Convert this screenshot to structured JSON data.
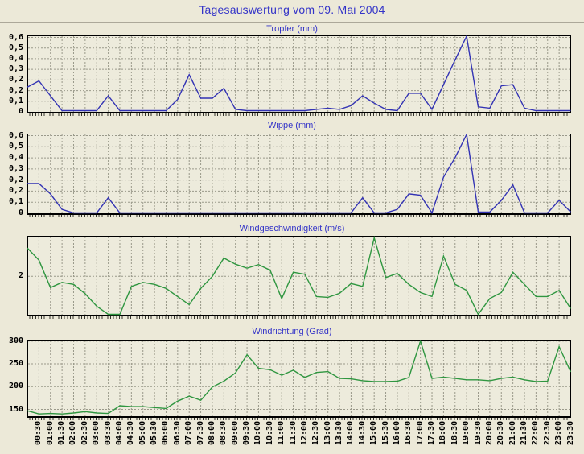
{
  "page": {
    "title": "Tagesauswertung vom 09. Mai 2004",
    "background": "#ece9d8",
    "plot_background": "#edebdc",
    "title_color": "#3434c8",
    "grid_color": "#9a998a",
    "axis_color": "#000000"
  },
  "x_axis": {
    "tick_labels": [
      "00:30",
      "01:00",
      "01:30",
      "02:00",
      "02:30",
      "03:00",
      "03:30",
      "04:00",
      "04:30",
      "05:00",
      "05:30",
      "06:00",
      "06:30",
      "07:00",
      "07:30",
      "08:00",
      "08:30",
      "09:00",
      "09:30",
      "10:00",
      "10:30",
      "11:00",
      "11:30",
      "12:00",
      "12:30",
      "13:00",
      "13:30",
      "14:00",
      "14:30",
      "15:00",
      "15:30",
      "16:00",
      "16:30",
      "17:00",
      "17:30",
      "18:00",
      "18:30",
      "19:00",
      "19:30",
      "20:00",
      "20:30",
      "21:00",
      "21:30",
      "22:00",
      "22:30",
      "23:00",
      "23:30"
    ]
  },
  "chart_data": [
    {
      "type": "line",
      "title": "Tropfer (mm)",
      "line_color": "#3333b4",
      "y_axis": {
        "scale": "rows",
        "labels": [
          "0,6",
          "0,5",
          "0,4",
          "0,3",
          "0,2",
          "0,2",
          "0,1",
          "0"
        ],
        "top_value": 0.6,
        "bottom_value": 0
      },
      "x_step_minutes": 30,
      "values": [
        0.2,
        0.25,
        0.13,
        0.01,
        0.01,
        0.01,
        0.01,
        0.13,
        0.01,
        0.01,
        0.01,
        0.01,
        0.01,
        0.1,
        0.3,
        0.11,
        0.11,
        0.19,
        0.02,
        0.01,
        0.01,
        0.01,
        0.01,
        0.01,
        0.01,
        0.02,
        0.03,
        0.02,
        0.05,
        0.13,
        0.07,
        0.02,
        0.01,
        0.15,
        0.15,
        0.02,
        0.22,
        0.42,
        0.62,
        0.04,
        0.03,
        0.21,
        0.22,
        0.03,
        0.01,
        0.01,
        0.01,
        0.01
      ]
    },
    {
      "type": "line",
      "title": "Wippe (mm)",
      "line_color": "#3333b4",
      "y_axis": {
        "scale": "rows",
        "labels": [
          "0,6",
          "0,5",
          "0,4",
          "0,3",
          "0,2",
          "0,2",
          "0,1",
          "0"
        ],
        "top_value": 0.6,
        "bottom_value": 0
      },
      "x_step_minutes": 30,
      "values": [
        0.23,
        0.23,
        0.15,
        0.03,
        0.0,
        0.0,
        0.0,
        0.12,
        0.0,
        0.0,
        0.0,
        0.0,
        0.0,
        0.0,
        0.0,
        0.0,
        0.0,
        0.0,
        0.0,
        0.0,
        0.0,
        0.0,
        0.0,
        0.0,
        0.0,
        0.0,
        0.0,
        0.0,
        0.0,
        0.12,
        0.0,
        0.0,
        0.03,
        0.15,
        0.14,
        0.0,
        0.28,
        0.43,
        0.63,
        0.01,
        0.01,
        0.1,
        0.22,
        0.0,
        0.0,
        0.0,
        0.1,
        0.01
      ]
    },
    {
      "type": "line",
      "title": "Windgeschwindigkeit (m/s)",
      "line_color": "#2f9640",
      "y_axis": {
        "scale": "linear",
        "labels": [
          "2"
        ],
        "gridline_values": [
          2
        ],
        "min": 1.05,
        "max": 3.0
      },
      "x_step_minutes": 30,
      "values": [
        2.7,
        2.4,
        1.72,
        1.85,
        1.8,
        1.57,
        1.26,
        1.05,
        1.05,
        1.75,
        1.85,
        1.8,
        1.7,
        1.5,
        1.3,
        1.7,
        2.0,
        2.45,
        2.3,
        2.2,
        2.29,
        2.15,
        1.45,
        2.1,
        2.05,
        1.5,
        1.48,
        1.58,
        1.82,
        1.75,
        2.95,
        1.97,
        2.07,
        1.8,
        1.6,
        1.5,
        2.5,
        1.8,
        1.65,
        1.05,
        1.45,
        1.6,
        2.1,
        1.8,
        1.5,
        1.5,
        1.65,
        1.2
      ]
    },
    {
      "type": "line",
      "title": "Windrichtung (Grad)",
      "line_color": "#2f9640",
      "y_axis": {
        "scale": "linear",
        "labels": [
          "300",
          "250",
          "200",
          "150"
        ],
        "gridline_values": [
          300,
          250,
          200,
          150
        ],
        "min": 135,
        "max": 303
      },
      "x_step_minutes": 30,
      "values": [
        147,
        140,
        141,
        140,
        142,
        145,
        142,
        141,
        158,
        156,
        156,
        154,
        152,
        168,
        179,
        170,
        199,
        212,
        230,
        270,
        240,
        237,
        225,
        236,
        220,
        231,
        233,
        218,
        217,
        213,
        211,
        211,
        212,
        220,
        300,
        218,
        221,
        218,
        215,
        215,
        213,
        218,
        221,
        215,
        211,
        212,
        288,
        232
      ]
    }
  ]
}
